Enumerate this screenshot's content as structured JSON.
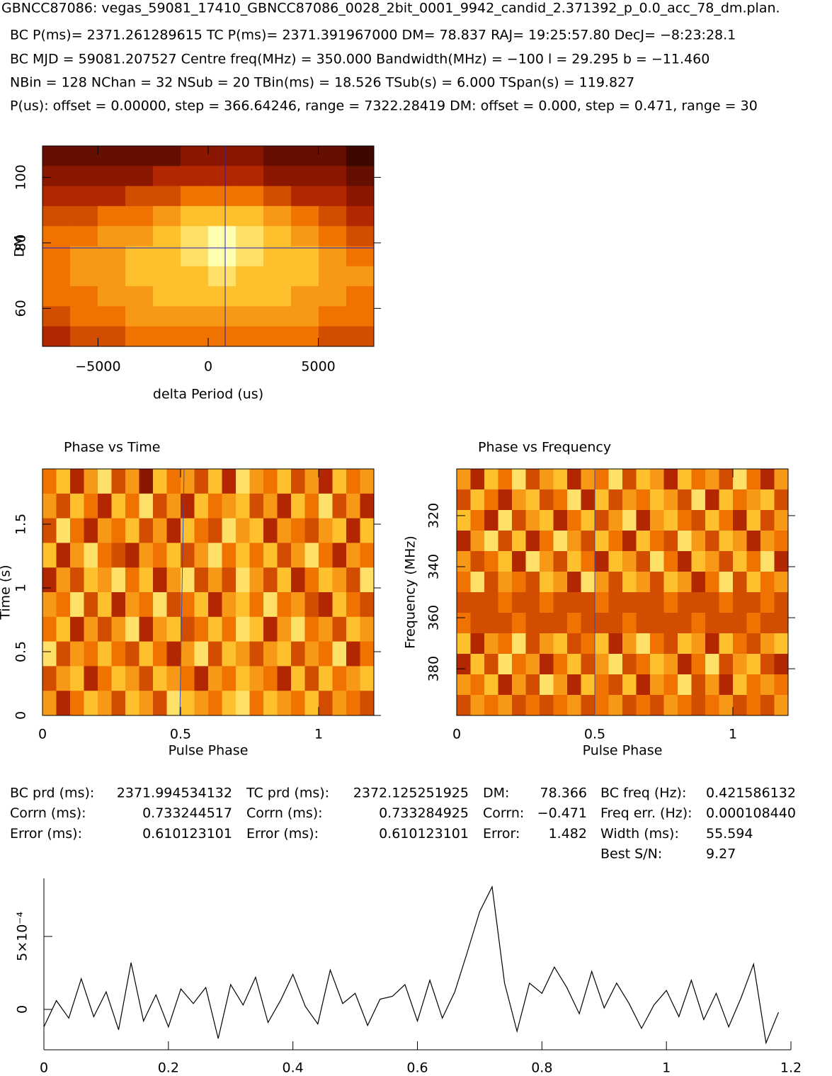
{
  "header": {
    "line1": "GBNCC87086: vegas_59081_17410_GBNCC87086_0028_2bit_0001_9942_candid_2.371392_p_0.0_acc_78_dm.plan.",
    "line2": "BC P(ms)= 2371.261289615 TC P(ms)= 2371.391967000 DM= 78.837 RAJ= 19:25:57.80 DecJ= −8:23:28.1",
    "line3": "BC MJD = 59081.207527 Centre freq(MHz) = 350.000 Bandwidth(MHz) = −100 l = 29.295 b = −11.460",
    "line4": "NBin = 128 NChan = 32 NSub = 20 TBin(ms) = 18.526 TSub(s) = 6.000 TSpan(s) = 119.827",
    "line5": "P(us): offset = 0.00000, step = 366.64246, range = 7322.28419 DM: offset = 0.000, step = 0.471, range = 30"
  },
  "table": {
    "columns": [
      {
        "labels": [
          "BC prd (ms):",
          "Corrn (ms):",
          "Error (ms):"
        ],
        "values": [
          "2371.994534132",
          "0.733244517",
          "0.610123101"
        ]
      },
      {
        "labels": [
          "TC prd (ms):",
          "Corrn (ms):",
          "Error (ms):"
        ],
        "values": [
          "2372.125251925",
          "0.733284925",
          "0.610123101"
        ]
      },
      {
        "labels": [
          "DM:",
          "Corrn:",
          "Error:"
        ],
        "values": [
          "78.366",
          "−0.471",
          "1.482"
        ]
      },
      {
        "labels": [
          "BC freq (Hz):",
          "Freq err. (Hz):",
          "Width (ms):",
          "Best S/N:"
        ],
        "values": [
          "0.421586132",
          "0.000108440",
          "55.594",
          "9.27"
        ]
      }
    ]
  },
  "chart_data": [
    {
      "type": "heatmap",
      "xlabel": "delta Period (us)",
      "ylabel": "DM",
      "xlim": [
        -7520,
        7520
      ],
      "ylim": [
        48.4,
        109.6
      ],
      "zlim": [
        0,
        9
      ],
      "xticks": [
        {
          "value": -5000,
          "label": "−5000"
        },
        0,
        5000
      ],
      "yticks": [
        60,
        80,
        100
      ],
      "z": [
        [
          1,
          1,
          1,
          1,
          1,
          2,
          2,
          2,
          1,
          1,
          1,
          0
        ],
        [
          2,
          2,
          2,
          2,
          3,
          3,
          3,
          3,
          2,
          2,
          2,
          1
        ],
        [
          3,
          3,
          3,
          4,
          4,
          5,
          5,
          5,
          4,
          3,
          3,
          2
        ],
        [
          4,
          4,
          5,
          5,
          6,
          7,
          7,
          7,
          6,
          5,
          4,
          3
        ],
        [
          5,
          5,
          6,
          6,
          7,
          8,
          9,
          8,
          7,
          6,
          5,
          4
        ],
        [
          5,
          6,
          6,
          7,
          7,
          8,
          9,
          8,
          7,
          7,
          6,
          5
        ],
        [
          5,
          6,
          6,
          7,
          7,
          7,
          8,
          7,
          7,
          7,
          6,
          6
        ],
        [
          5,
          5,
          6,
          6,
          7,
          7,
          7,
          7,
          7,
          6,
          6,
          5
        ],
        [
          4,
          5,
          5,
          6,
          6,
          6,
          6,
          6,
          6,
          6,
          5,
          5
        ],
        [
          3,
          4,
          4,
          5,
          5,
          5,
          5,
          5,
          5,
          5,
          4,
          4
        ]
      ]
    },
    {
      "type": "heatmap",
      "title": "Phase vs Time",
      "xlabel": "Pulse Phase",
      "ylabel": "Time (s)",
      "xlim": [
        0,
        1.2
      ],
      "ylim": [
        0,
        1.933
      ],
      "zlim": [
        0,
        9
      ],
      "xticks": [
        0,
        0.5,
        1
      ],
      "yticks": [
        0,
        0.5,
        1,
        1.5
      ],
      "z": [
        [
          5,
          7,
          3,
          6,
          8,
          4,
          6,
          2,
          7,
          5,
          6,
          4,
          7,
          3,
          8,
          6,
          5,
          7,
          4,
          6,
          3,
          7,
          5,
          6
        ],
        [
          6,
          4,
          7,
          5,
          3,
          7,
          5,
          8,
          4,
          6,
          3,
          7,
          5,
          6,
          7,
          4,
          6,
          3,
          7,
          5,
          8,
          4,
          6,
          3
        ],
        [
          4,
          8,
          5,
          3,
          6,
          5,
          7,
          4,
          6,
          3,
          7,
          5,
          4,
          8,
          6,
          7,
          3,
          6,
          5,
          4,
          6,
          7,
          3,
          7
        ],
        [
          7,
          3,
          6,
          8,
          5,
          4,
          3,
          6,
          5,
          7,
          4,
          6,
          8,
          5,
          7,
          5,
          7,
          4,
          6,
          8,
          5,
          3,
          6,
          5
        ],
        [
          3,
          6,
          4,
          7,
          6,
          8,
          5,
          7,
          3,
          6,
          8,
          4,
          6,
          4,
          8,
          6,
          4,
          7,
          3,
          5,
          7,
          6,
          4,
          8
        ],
        [
          6,
          5,
          8,
          4,
          7,
          3,
          6,
          5,
          8,
          4,
          5,
          7,
          3,
          6,
          7,
          5,
          8,
          5,
          6,
          4,
          3,
          7,
          5,
          4
        ],
        [
          5,
          7,
          3,
          6,
          4,
          6,
          8,
          3,
          6,
          7,
          4,
          5,
          7,
          5,
          8,
          7,
          3,
          6,
          8,
          5,
          6,
          4,
          7,
          6
        ],
        [
          8,
          4,
          6,
          5,
          7,
          5,
          4,
          7,
          5,
          3,
          6,
          8,
          4,
          7,
          6,
          4,
          6,
          7,
          4,
          6,
          5,
          8,
          3,
          5
        ],
        [
          4,
          6,
          7,
          3,
          5,
          7,
          6,
          4,
          7,
          6,
          5,
          3,
          6,
          5,
          7,
          6,
          5,
          3,
          7,
          4,
          7,
          5,
          6,
          7
        ],
        [
          6,
          3,
          5,
          7,
          6,
          4,
          7,
          6,
          4,
          8,
          7,
          6,
          5,
          7,
          8,
          5,
          7,
          6,
          5,
          7,
          4,
          6,
          5,
          4
        ]
      ]
    },
    {
      "type": "heatmap",
      "title": "Phase vs Frequency",
      "xlabel": "Pulse Phase",
      "ylabel": "Frequency (MHz)",
      "xlim": [
        0,
        1.2
      ],
      "ylim": [
        398.3,
        301.7
      ],
      "zlim": [
        0,
        9
      ],
      "xticks": [
        0,
        0.5,
        1
      ],
      "yticks": [
        320,
        340,
        360,
        380
      ],
      "z": [
        [
          6,
          3,
          7,
          5,
          8,
          4,
          6,
          7,
          3,
          6,
          5,
          8,
          4,
          7,
          6,
          3,
          7,
          5,
          6,
          4,
          8,
          5,
          3,
          6
        ],
        [
          4,
          7,
          5,
          3,
          6,
          7,
          4,
          5,
          8,
          3,
          7,
          4,
          6,
          5,
          7,
          6,
          4,
          8,
          3,
          7,
          5,
          6,
          7,
          4
        ],
        [
          7,
          5,
          3,
          8,
          4,
          6,
          7,
          3,
          5,
          7,
          4,
          6,
          8,
          3,
          6,
          7,
          5,
          4,
          7,
          5,
          3,
          7,
          4,
          6
        ],
        [
          3,
          6,
          8,
          4,
          7,
          3,
          5,
          8,
          6,
          4,
          7,
          5,
          3,
          7,
          5,
          4,
          8,
          6,
          4,
          7,
          6,
          3,
          6,
          5
        ],
        [
          6,
          4,
          5,
          7,
          3,
          8,
          6,
          4,
          7,
          5,
          3,
          7,
          6,
          4,
          8,
          5,
          3,
          7,
          6,
          4,
          7,
          5,
          8,
          3
        ],
        [
          5,
          8,
          4,
          6,
          5,
          4,
          7,
          6,
          3,
          8,
          6,
          4,
          7,
          6,
          4,
          7,
          6,
          3,
          5,
          8,
          4,
          7,
          5,
          6
        ],
        [
          4,
          4,
          4,
          5,
          4,
          4,
          5,
          4,
          4,
          4,
          5,
          4,
          4,
          4,
          4,
          5,
          4,
          4,
          4,
          5,
          4,
          4,
          5,
          4
        ],
        [
          5,
          4,
          4,
          4,
          5,
          4,
          4,
          4,
          5,
          4,
          4,
          4,
          5,
          4,
          4,
          4,
          4,
          5,
          4,
          4,
          4,
          5,
          4,
          4
        ],
        [
          7,
          3,
          6,
          5,
          8,
          4,
          6,
          7,
          4,
          5,
          7,
          3,
          6,
          8,
          5,
          4,
          7,
          6,
          3,
          7,
          5,
          4,
          6,
          7
        ],
        [
          3,
          7,
          4,
          8,
          5,
          6,
          3,
          5,
          7,
          4,
          6,
          8,
          4,
          5,
          7,
          6,
          3,
          5,
          8,
          4,
          6,
          7,
          4,
          3
        ],
        [
          6,
          5,
          7,
          3,
          6,
          4,
          8,
          6,
          3,
          7,
          5,
          4,
          7,
          3,
          6,
          5,
          8,
          4,
          6,
          3,
          7,
          5,
          6,
          5
        ],
        [
          4,
          6,
          5,
          6,
          4,
          5,
          4,
          5,
          6,
          4,
          5,
          6,
          4,
          5,
          4,
          6,
          5,
          4,
          5,
          6,
          4,
          5,
          4,
          6
        ]
      ]
    },
    {
      "type": "line",
      "color": "#000000",
      "xlim": [
        0,
        1.2
      ],
      "ylim": [
        -0.000277,
        0.000898
      ],
      "xticks": [
        0,
        0.2,
        0.4,
        0.6,
        0.8,
        1,
        1.2
      ],
      "yticks": [
        0,
        {
          "value": 0.0005,
          "label": "5×10⁻⁴"
        }
      ],
      "x": [
        0,
        0.02,
        0.04,
        0.06,
        0.08,
        0.1,
        0.12,
        0.14,
        0.16,
        0.18,
        0.2,
        0.22,
        0.24,
        0.26,
        0.28,
        0.3,
        0.32,
        0.34,
        0.36,
        0.38,
        0.4,
        0.42,
        0.44,
        0.46,
        0.48,
        0.5,
        0.52,
        0.54,
        0.56,
        0.58,
        0.6,
        0.62,
        0.64,
        0.66,
        0.68,
        0.7,
        0.72,
        0.74,
        0.76,
        0.78,
        0.8,
        0.82,
        0.84,
        0.86,
        0.88,
        0.9,
        0.92,
        0.94,
        0.96,
        0.98,
        1,
        1.02,
        1.04,
        1.06,
        1.08,
        1.1,
        1.12,
        1.14,
        1.16,
        1.18
      ],
      "values": [
        -0.00012,
        6e-05,
        -6e-05,
        0.00021,
        -5e-05,
        0.00012,
        -0.00014,
        0.00032,
        -8e-05,
        0.0001,
        -0.00012,
        0.00014,
        4e-05,
        0.00015,
        -0.0002,
        0.00017,
        3e-05,
        0.00022,
        -9e-05,
        6e-05,
        0.00024,
        2e-05,
        -0.0001,
        0.00027,
        4e-05,
        0.00011,
        -0.00011,
        7e-05,
        9e-05,
        0.00017,
        -8e-05,
        0.0002,
        -6e-05,
        0.00012,
        0.00039,
        0.00067,
        0.00084,
        0.00018,
        -0.00015,
        0.00018,
        0.00011,
        0.00029,
        0.00015,
        -3e-05,
        0.00026,
        1e-05,
        0.00018,
        4e-05,
        -0.00013,
        3e-05,
        0.00013,
        -5e-05,
        0.0002,
        -7e-05,
        0.00011,
        -0.00012,
        8e-05,
        0.00031,
        -0.00023,
        -2e-05
      ]
    }
  ]
}
